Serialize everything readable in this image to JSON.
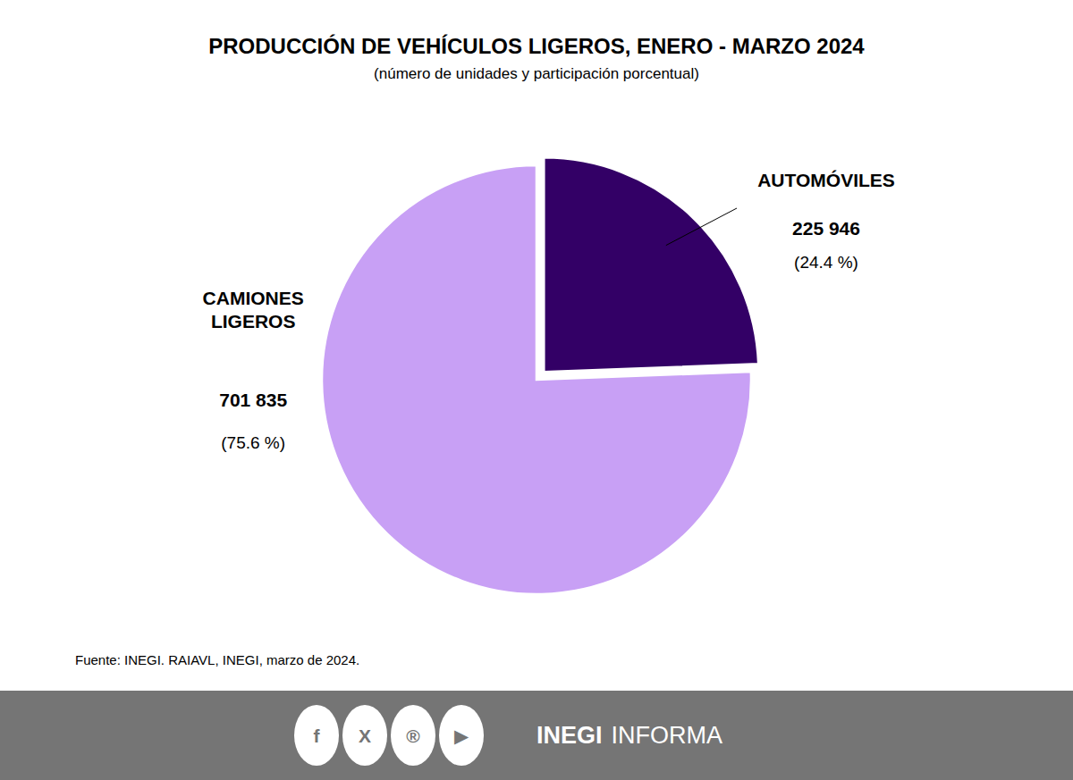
{
  "chart_data": {
    "type": "pie",
    "title": "PRODUCCIÓN DE VEHÍCULOS LIGEROS, ENERO - MARZO 2024",
    "subtitle": "(número de unidades y participación porcentual)",
    "categories": [
      "AUTOMÓVILES",
      "CAMIONES\nLIGEROS"
    ],
    "values": [
      24.4,
      75.6
    ],
    "value_labels": [
      "(24.4 %)",
      "(75.6 %)"
    ],
    "counts": [
      225946,
      701835
    ],
    "count_labels": [
      "225 946",
      "701 835"
    ],
    "colors": [
      "#330066",
      "#c8a0f5"
    ],
    "data_labels": true,
    "source": "Fuente: INEGI. RAIAVL, INEGI, marzo de 2024.",
    "footer": {
      "color": "#757575",
      "icons": [
        "f",
        "X",
        "®",
        "▶"
      ],
      "brand": [
        "INEGI",
        "INFORMA"
      ]
    }
  }
}
